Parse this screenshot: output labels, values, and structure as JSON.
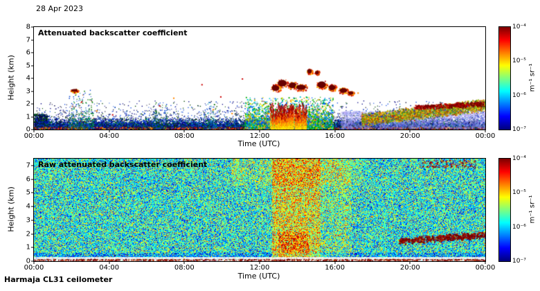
{
  "page": {
    "date_label": "28 Apr 2023",
    "instrument_label": "Harmaja CL31 ceilometer",
    "background_color": "#ffffff"
  },
  "chart_data": [
    {
      "type": "heatmap",
      "title": "Attenuated backscatter coefficient",
      "xlabel": "Time (UTC)",
      "ylabel": "Height (km)",
      "x_ticks": [
        "00:00",
        "04:00",
        "08:00",
        "12:00",
        "16:00",
        "20:00",
        "00:00"
      ],
      "x_range_hours": [
        0,
        24
      ],
      "y_ticks": [
        0,
        1,
        2,
        3,
        4,
        5,
        6,
        7,
        8
      ],
      "y_range_km": [
        0,
        8
      ],
      "background": "#ffffff",
      "colorbar": {
        "ticks": [
          "10⁻⁴",
          "10⁻⁵",
          "10⁻⁶",
          "10⁻⁷"
        ],
        "unit_label": "m⁻¹ sr⁻¹",
        "scale": "log10",
        "range": [
          "1e-7",
          "1e-4"
        ],
        "colormap": "jet"
      },
      "render": {
        "layers": [
          {
            "kind": "speckle",
            "label": "boundary-layer aerosol, dense surface layer 0-0.8 km all day",
            "x": [
              0,
              24
            ],
            "y": [
              0,
              0.8
            ],
            "yfall": 0.22,
            "n": 15000,
            "size": [
              1,
              2
            ],
            "colors": [
              [
                "#000080",
                3
              ],
              [
                "#0033cc",
                2.5
              ],
              [
                "#1060e0",
                1.5
              ],
              [
                "#008800",
                1.3
              ],
              [
                "#00b0b0",
                0.6
              ],
              [
                "#003355",
                0.8
              ],
              [
                "#111111",
                0.6
              ]
            ]
          },
          {
            "kind": "speckle",
            "label": "deep mixed plume 00:00-00:40",
            "x": [
              0,
              0.7
            ],
            "y": [
              0,
              1.15
            ],
            "n": 420,
            "size": [
              1,
              2
            ],
            "colors": [
              [
                "#000080",
                2
              ],
              [
                "#006600",
                1.5
              ],
              [
                "#111122",
                1
              ]
            ]
          },
          {
            "kind": "speckle",
            "label": "strong surface echo line",
            "x": [
              0,
              24
            ],
            "y": [
              0,
              0.12
            ],
            "n": 2800,
            "size": [
              1,
              2
            ],
            "colors": [
              [
                "#dd0000",
                2
              ],
              [
                "#ff8800",
                1.5
              ],
              [
                "#ffd000",
                1
              ],
              [
                "#880000",
                1
              ]
            ]
          },
          {
            "kind": "speckle",
            "label": "sparse lofted aerosol up to 2 km",
            "x": [
              0,
              24
            ],
            "y": [
              0,
              2.2
            ],
            "yfall": 0.6,
            "n": 5200,
            "size": [
              1,
              1.4
            ],
            "colors": [
              [
                "#000080",
                2
              ],
              [
                "#0040dd",
                1.5
              ],
              [
                "#004400",
                1
              ],
              [
                "#111133",
                1
              ]
            ]
          },
          {
            "kind": "speckle",
            "label": "morning plume 02:00-03:00 up to 3 km",
            "x": [
              1.8,
              3.2
            ],
            "y": [
              0,
              3.1
            ],
            "yfall": 1.1,
            "n": 330,
            "size": [
              1,
              1.6
            ],
            "colors": [
              [
                "#007700",
                1.4
              ],
              [
                "#0040cc",
                1
              ],
              [
                "#00a0a0",
                0.7
              ],
              [
                "#cc5500",
                0.25
              ]
            ]
          },
          {
            "kind": "speckle",
            "label": "plume near 06:30",
            "x": [
              6.3,
              7.1
            ],
            "y": [
              0,
              2.2
            ],
            "yfall": 0.8,
            "n": 160,
            "size": [
              1,
              1.5
            ],
            "colors": [
              [
                "#006600",
                1
              ],
              [
                "#0040cc",
                1
              ]
            ]
          },
          {
            "kind": "speckle",
            "label": "plume near 09:20",
            "x": [
              9.0,
              9.7
            ],
            "y": [
              0,
              2.3
            ],
            "yfall": 0.8,
            "n": 140,
            "size": [
              1,
              1.5
            ],
            "colors": [
              [
                "#006600",
                1
              ],
              [
                "#0040cc",
                1
              ],
              [
                "#00a0a0",
                0.5
              ]
            ]
          },
          {
            "kind": "speckle",
            "label": "midday convective mixing 11:15-15:50 up to 2.5 km",
            "x": [
              11.2,
              15.9
            ],
            "y": [
              0,
              2.5
            ],
            "yfall": 0.85,
            "n": 2800,
            "size": [
              1,
              2
            ],
            "colors": [
              [
                "#00aa00",
                1.5
              ],
              [
                "#00cccc",
                1
              ],
              [
                "#0055ff",
                1
              ],
              [
                "#dddd00",
                0.7
              ],
              [
                "#ff9900",
                0.35
              ]
            ]
          },
          {
            "kind": "streaks",
            "label": "precipitation / virga streaks 12:30-14:30, surface to ~2 km",
            "x": [
              12.55,
              14.45
            ],
            "n": 85,
            "ytop": [
              0.9,
              2.15
            ],
            "colors": [
              "#ffe000",
              "#ffb000",
              "#ff7000",
              "#e03000",
              "#a00000"
            ]
          },
          {
            "kind": "speckle",
            "label": "evening shallow haze below 1.3 km after 16:20",
            "x": [
              16.3,
              24
            ],
            "y": [
              0,
              1.35
            ],
            "n": 2800,
            "size": [
              2,
              2.5
            ],
            "colors": [
              [
                "rgba(150,160,245,0.28)",
                2
              ],
              [
                "rgba(190,150,235,0.22)",
                1
              ]
            ]
          },
          {
            "kind": "band",
            "label": "residual aerosol layer rising from 0.8 to 2 km, 17:30-24:00",
            "x": [
              17.4,
              24
            ],
            "y_start": 0.78,
            "y_end": 1.95,
            "thick": 0.55,
            "n": 3400,
            "size": [
              1,
              2
            ],
            "colors": [
              [
                "#808000",
                1
              ],
              [
                "#9acd32",
                1
              ],
              [
                "#ff9900",
                1.2
              ],
              [
                "#2e9e2e",
                1
              ],
              [
                "#cc3300",
                0.5
              ],
              [
                "#a05000",
                0.8
              ],
              [
                "#2040c0",
                0.5
              ],
              [
                "#ddcc00",
                0.8
              ]
            ]
          },
          {
            "kind": "band",
            "label": "strong layer-top echoes ~1.9 km, 20:10-23:50",
            "x": [
              20.2,
              23.9
            ],
            "y_start": 1.78,
            "y_end": 2.02,
            "thick": 0.22,
            "n": 300,
            "size": [
              1.5,
              2.5
            ],
            "colors": [
              [
                "#770000",
                2
              ],
              [
                "#bb0000",
                1
              ]
            ]
          },
          {
            "kind": "blobs",
            "label": "cloud-base detections 2.9-4.6 km between 12:50 and 17:00 plus echo at 02:10",
            "core": "#660000",
            "fringe": [
              [
                "#bb0000",
                2
              ],
              [
                "#ff4400",
                1.5
              ],
              [
                "#ff9900",
                1
              ],
              [
                "#ffd000",
                0.8
              ]
            ],
            "fringe_n": 55,
            "blobs": [
              [
                12.85,
                3.25,
                0.2,
                0.24
              ],
              [
                13.2,
                3.62,
                0.24,
                0.26
              ],
              [
                13.75,
                3.45,
                0.2,
                0.22
              ],
              [
                14.2,
                3.3,
                0.26,
                0.2
              ],
              [
                14.65,
                4.55,
                0.12,
                0.16
              ],
              [
                15.05,
                4.45,
                0.1,
                0.13
              ],
              [
                15.3,
                3.5,
                0.22,
                0.26
              ],
              [
                15.85,
                3.28,
                0.18,
                0.2
              ],
              [
                16.45,
                3.05,
                0.2,
                0.18
              ],
              [
                16.85,
                2.85,
                0.13,
                0.13
              ],
              [
                2.15,
                3.05,
                0.16,
                0.1
              ]
            ]
          },
          {
            "kind": "points",
            "label": "isolated echoes",
            "size": 2,
            "colors": [
              [
                "#cc0000",
                1.5
              ],
              [
                "#ff8800",
                1
              ]
            ],
            "pts": [
              [
                2.5,
                2.2
              ],
              [
                3.3,
                1.5
              ],
              [
                4.15,
                1.2
              ],
              [
                6.65,
                1.9
              ],
              [
                7.4,
                2.5
              ],
              [
                8.9,
                3.55
              ],
              [
                9.5,
                1.6
              ],
              [
                9.9,
                2.6
              ],
              [
                10.5,
                1.3
              ],
              [
                11.05,
                4.0
              ],
              [
                17.2,
                2.9
              ],
              [
                18.3,
                1.35
              ],
              [
                19.05,
                1.1
              ]
            ]
          }
        ]
      }
    },
    {
      "type": "heatmap",
      "title": "Raw attenuated backscatter coefficient",
      "xlabel": "Time (UTC)",
      "ylabel": "Height (km)",
      "x_ticks": [
        "00:00",
        "04:00",
        "08:00",
        "12:00",
        "16:00",
        "20:00",
        "00:00"
      ],
      "x_range_hours": [
        0,
        24
      ],
      "y_ticks": [
        0,
        1,
        2,
        3,
        4,
        5,
        6,
        7
      ],
      "y_range_km": [
        0,
        7.5
      ],
      "background": "#ffffff",
      "colorbar": {
        "ticks": [
          "10⁻⁴",
          "10⁻⁵",
          "10⁻⁶",
          "10⁻⁷"
        ],
        "unit_label": "m⁻¹ sr⁻¹",
        "scale": "log10",
        "range": [
          "1e-7",
          "1e-4"
        ],
        "colormap": "jet"
      },
      "render": {
        "layers": [
          {
            "kind": "field",
            "label": "full-field raw noise, green-cyan background with rainbow speckle",
            "base_mean": 0.4,
            "base_sd": 0.24,
            "modifiers": [
              {
                "x": [
                  12.65,
                  15.25
                ],
                "y": [
                  0,
                  7.5
                ],
                "dmean": 0.22,
                "label": "strong rain band 12:40-15:15, enhanced through full depth"
              },
              {
                "x": [
                  13.0,
                  14.6
                ],
                "y": [
                  0,
                  2.2
                ],
                "dmean": 0.14,
                "label": "low-level rain core"
              },
              {
                "x": [
                  15.25,
                  16.9
                ],
                "y": [
                  0,
                  7.5
                ],
                "dmean": 0.07,
                "label": "secondary enhancement 15:15-16:55"
              },
              {
                "x": [
                  10.5,
                  17.5
                ],
                "y": [
                  5.5,
                  7.5
                ],
                "dmean": 0.07,
                "label": "upper-level enhancement midday"
              },
              {
                "x": [
                  0,
                  24
                ],
                "y": [
                  0.32,
                  0.6
                ],
                "dmean": -0.1,
                "label": "bluer dip just above surface band"
              },
              {
                "x": [
                  0,
                  24
                ],
                "y": [
                  0,
                  0.32
                ],
                "mode": "light",
                "label": "whitish surface overload band 0-0.3 km"
              }
            ]
          },
          {
            "kind": "band",
            "label": "residual-layer dark red echoes 1.5-2 km, 19:25-24:00",
            "x": [
              19.4,
              24
            ],
            "y_start": 1.5,
            "y_end": 1.95,
            "thick": 0.28,
            "n": 430,
            "size": [
              1.5,
              2.5
            ],
            "colors": [
              [
                "#770000",
                2
              ],
              [
                "#aa1100",
                1
              ]
            ]
          },
          {
            "kind": "speckle",
            "label": "surface echo dashes along bottom edge",
            "x": [
              0,
              24
            ],
            "y": [
              0,
              0.08
            ],
            "n": 800,
            "size": [
              1,
              2
            ],
            "colors": [
              [
                "#7a0000",
                2
              ],
              [
                "#b03000",
                1
              ]
            ]
          },
          {
            "kind": "speckle",
            "label": "upper echoes 20:30-23:30 near 7 km",
            "x": [
              20.5,
              23.5
            ],
            "y": [
              6.8,
              7.35
            ],
            "n": 130,
            "size": [
              1,
              2
            ],
            "colors": [
              [
                "#880000",
                1.5
              ],
              [
                "#cc2200",
                1
              ]
            ]
          }
        ]
      }
    }
  ]
}
